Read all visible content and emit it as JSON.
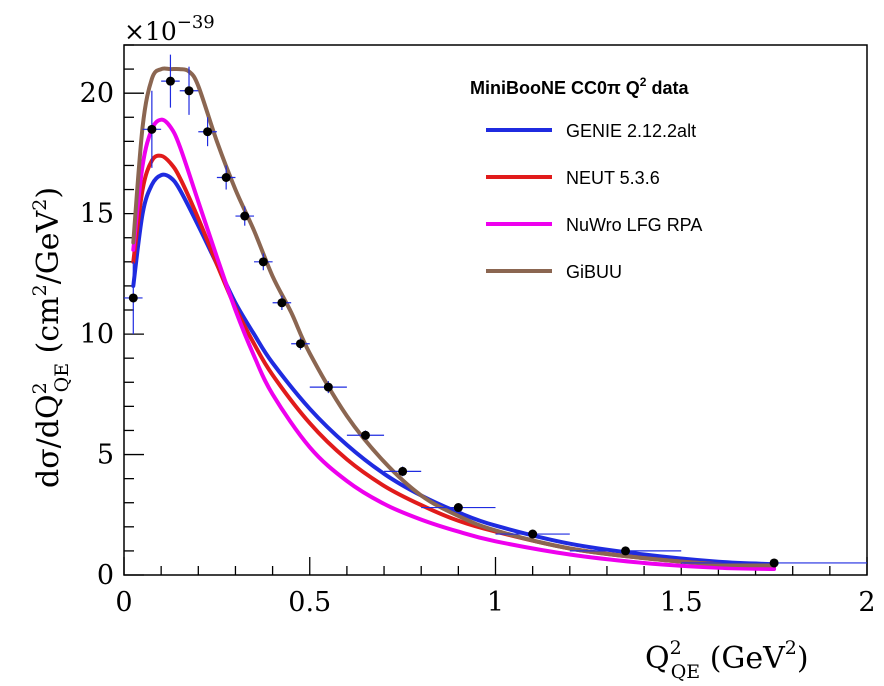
{
  "chart_data": {
    "type": "line",
    "multiplier": {
      "base": "×10",
      "exponent": "−39"
    },
    "ylabel": {
      "main": "dσ/dQ",
      "sup": "2",
      "sub": "QE",
      "unit": " (cm",
      "unit_sup": "2",
      "unit_mid": "/GeV",
      "unit_sup2": "2",
      "unit_end": ")"
    },
    "xlabel": {
      "main": "Q",
      "sup": "2",
      "sub": "QE",
      "unit": " (GeV",
      "unit_sup": "2",
      "unit_end": ")"
    },
    "xlim": [
      0,
      2
    ],
    "ylim": [
      0,
      22
    ],
    "x_ticks": [
      0,
      0.5,
      1,
      1.5,
      2
    ],
    "x_tick_labels": [
      "0",
      "0.5",
      "1",
      "1.5",
      "2"
    ],
    "y_ticks": [
      0,
      5,
      10,
      15,
      20
    ],
    "y_tick_labels": [
      "0",
      "5",
      "10",
      "15",
      "20"
    ],
    "grid": false,
    "legend": {
      "placement": "top-right",
      "title": "MiniBooNE CC0π Q",
      "title_sup": "2",
      "title_end": " data"
    },
    "series": [
      {
        "name": "GENIE 2.12.2alt",
        "color": "#1f2be0",
        "x": [
          0.025,
          0.05,
          0.075,
          0.1,
          0.125,
          0.15,
          0.2,
          0.25,
          0.3,
          0.35,
          0.4,
          0.5,
          0.6,
          0.7,
          0.8,
          0.9,
          1.0,
          1.2,
          1.4,
          1.6,
          1.75
        ],
        "y": [
          12.0,
          15.0,
          16.2,
          16.6,
          16.5,
          16.0,
          14.5,
          12.9,
          11.3,
          10.0,
          8.8,
          6.9,
          5.4,
          4.2,
          3.3,
          2.6,
          2.05,
          1.3,
          0.85,
          0.55,
          0.45
        ]
      },
      {
        "name": "NEUT 5.3.6",
        "color": "#e11b1b",
        "x": [
          0.025,
          0.05,
          0.075,
          0.1,
          0.125,
          0.15,
          0.2,
          0.25,
          0.3,
          0.35,
          0.4,
          0.5,
          0.6,
          0.7,
          0.8,
          0.9,
          1.0,
          1.2,
          1.4,
          1.6,
          1.75
        ],
        "y": [
          13.0,
          16.0,
          17.2,
          17.4,
          17.1,
          16.5,
          14.8,
          12.9,
          11.1,
          9.6,
          8.3,
          6.3,
          4.8,
          3.7,
          2.9,
          2.25,
          1.8,
          1.1,
          0.7,
          0.45,
          0.35
        ]
      },
      {
        "name": "NuWro LFG RPA",
        "color": "#ee00ee",
        "x": [
          0.025,
          0.05,
          0.075,
          0.1,
          0.125,
          0.15,
          0.2,
          0.25,
          0.3,
          0.35,
          0.4,
          0.5,
          0.6,
          0.7,
          0.8,
          0.9,
          1.0,
          1.2,
          1.4,
          1.6,
          1.75
        ],
        "y": [
          13.5,
          17.0,
          18.5,
          18.9,
          18.6,
          17.8,
          15.5,
          13.2,
          11.0,
          9.1,
          7.5,
          5.3,
          3.9,
          2.95,
          2.3,
          1.8,
          1.4,
          0.85,
          0.5,
          0.3,
          0.25
        ]
      },
      {
        "name": "GiBUU",
        "color": "#8b6651",
        "x": [
          0.025,
          0.05,
          0.075,
          0.1,
          0.125,
          0.15,
          0.175,
          0.2,
          0.25,
          0.3,
          0.35,
          0.4,
          0.45,
          0.5,
          0.6,
          0.7,
          0.8,
          0.9,
          1.0,
          1.2,
          1.4,
          1.6,
          1.75
        ],
        "y": [
          13.8,
          18.6,
          20.6,
          21.0,
          21.0,
          21.0,
          20.9,
          20.3,
          18.0,
          16.0,
          14.3,
          12.4,
          10.9,
          9.2,
          6.6,
          4.7,
          3.3,
          2.45,
          1.85,
          1.1,
          0.7,
          0.45,
          0.4
        ]
      }
    ],
    "data_points": {
      "name": "MiniBooNE CC0π Q2 data",
      "color": "#000000",
      "x": [
        0.025,
        0.075,
        0.125,
        0.175,
        0.225,
        0.275,
        0.325,
        0.375,
        0.425,
        0.475,
        0.55,
        0.65,
        0.75,
        0.9,
        1.1,
        1.35,
        1.75
      ],
      "y": [
        11.5,
        18.5,
        20.5,
        20.1,
        18.4,
        16.5,
        14.9,
        13.0,
        11.3,
        9.6,
        7.8,
        5.8,
        4.3,
        2.8,
        1.7,
        1.0,
        0.5
      ],
      "xerr": [
        0.025,
        0.025,
        0.025,
        0.025,
        0.025,
        0.025,
        0.025,
        0.025,
        0.025,
        0.025,
        0.05,
        0.05,
        0.05,
        0.1,
        0.1,
        0.15,
        0.25
      ],
      "yerr": [
        1.5,
        1.6,
        1.1,
        1.0,
        0.6,
        0.5,
        0.4,
        0.35,
        0.3,
        0.25,
        0.25,
        0.2,
        0.2,
        0.15,
        0.1,
        0.1,
        0.1
      ]
    }
  }
}
